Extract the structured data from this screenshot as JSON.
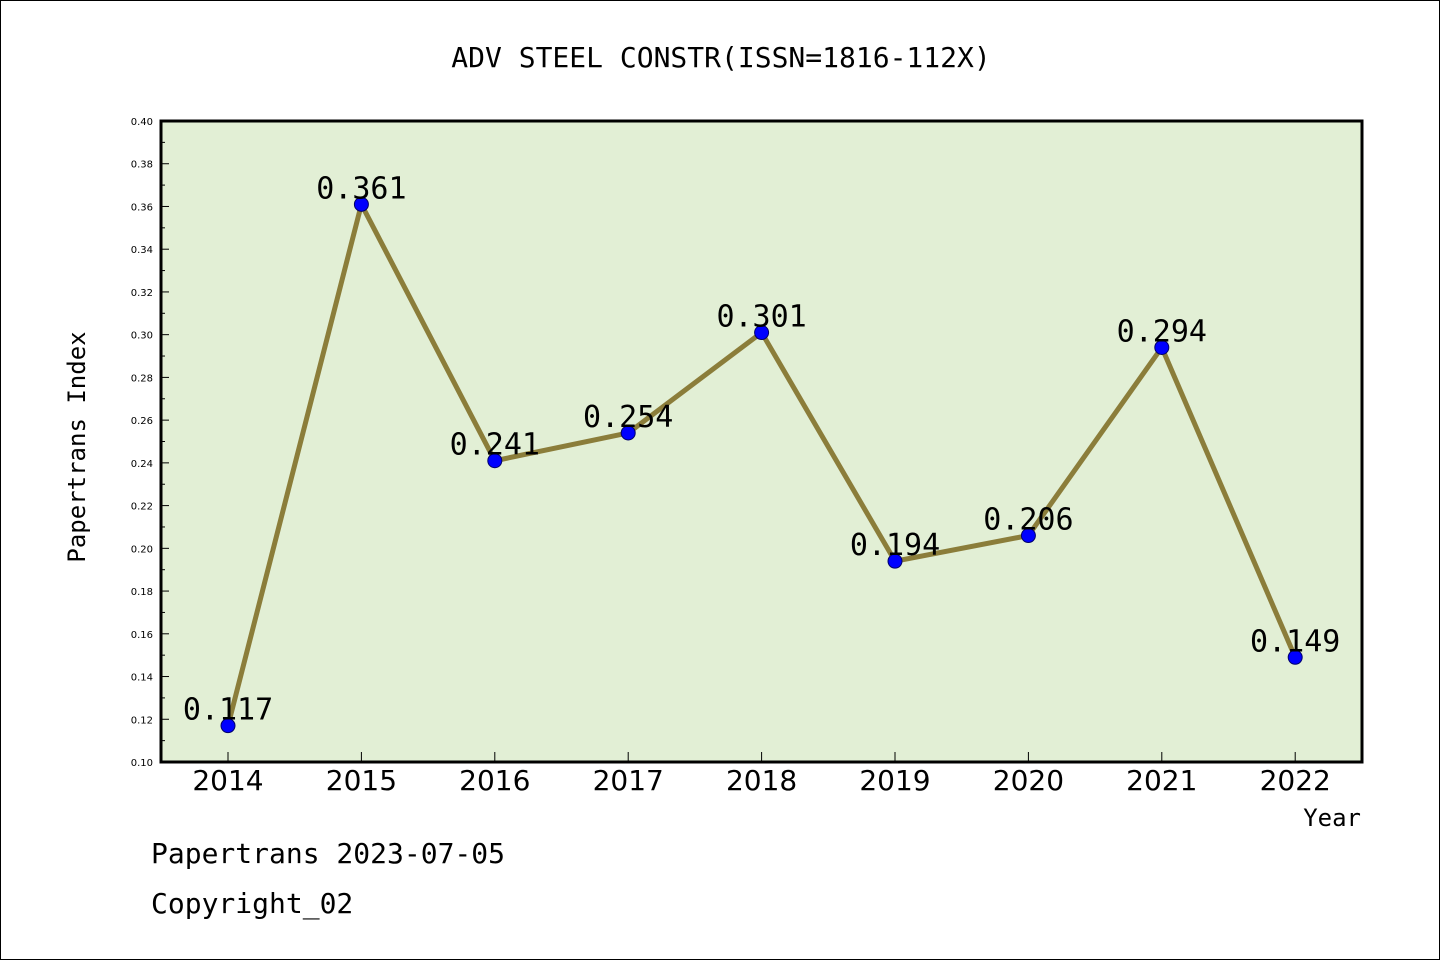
{
  "chart_data": {
    "type": "line",
    "title": "ADV STEEL CONSTR(ISSN=1816-112X)",
    "xlabel": "Year",
    "ylabel": "Papertrans Index",
    "categories": [
      "2014",
      "2015",
      "2016",
      "2017",
      "2018",
      "2019",
      "2020",
      "2021",
      "2022"
    ],
    "values": [
      0.117,
      0.361,
      0.241,
      0.254,
      0.301,
      0.194,
      0.206,
      0.294,
      0.149
    ],
    "data_labels": [
      "0.117",
      "0.361",
      "0.241",
      "0.254",
      "0.301",
      "0.194",
      "0.206",
      "0.294",
      "0.149"
    ],
    "ylim": [
      0.1,
      0.4
    ],
    "yticks": [
      "0.10",
      "0.12",
      "0.14",
      "0.16",
      "0.18",
      "0.20",
      "0.22",
      "0.24",
      "0.26",
      "0.28",
      "0.30",
      "0.32",
      "0.34",
      "0.36",
      "0.38",
      "0.40"
    ],
    "grid": false,
    "colors": {
      "plot_background": "#e2efd5",
      "line": "#8b7d3a",
      "marker": "#0000ff"
    }
  },
  "footer": {
    "line1": "Papertrans 2023-07-05",
    "line2": "Copyright_02"
  }
}
